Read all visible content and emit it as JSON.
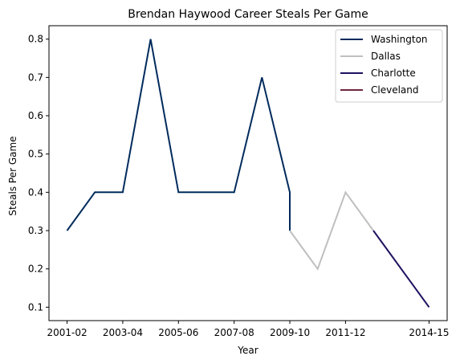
{
  "chart_data": {
    "type": "line",
    "title": "Brendan Haywood Career Steals Per Game",
    "xlabel": "Year",
    "ylabel": "Steals Per Game",
    "x_tick_labels": [
      "2001-02",
      "2003-04",
      "2005-06",
      "2007-08",
      "2009-10",
      "2011-12",
      "2014-15"
    ],
    "y_ticks": [
      0.1,
      0.2,
      0.3,
      0.4,
      0.5,
      0.6,
      0.7,
      0.8
    ],
    "ylim": [
      0.065,
      0.835
    ],
    "grid": false,
    "legend_position": "top-right",
    "series": [
      {
        "name": "Washington",
        "color": "#002B5C",
        "points": [
          {
            "x": "2001-02",
            "y": 0.3
          },
          {
            "x": "2002-03",
            "y": 0.4
          },
          {
            "x": "2003-04",
            "y": 0.4
          },
          {
            "x": "2004-05",
            "y": 0.8
          },
          {
            "x": "2005-06",
            "y": 0.4
          },
          {
            "x": "2006-07",
            "y": 0.4
          },
          {
            "x": "2007-08",
            "y": 0.4
          },
          {
            "x": "2008-09",
            "y": 0.7
          },
          {
            "x": "2009-10",
            "y": 0.4
          },
          {
            "x": "2009-10",
            "y": 0.3
          }
        ]
      },
      {
        "name": "Dallas",
        "color": "#BFBFBF",
        "points": [
          {
            "x": "2009-10",
            "y": 0.3
          },
          {
            "x": "2010-11",
            "y": 0.2
          },
          {
            "x": "2011-12",
            "y": 0.4
          },
          {
            "x": "2012-13",
            "y": 0.3
          }
        ]
      },
      {
        "name": "Charlotte",
        "color": "#1D1160",
        "points": [
          {
            "x": "2012-13",
            "y": 0.3
          },
          {
            "x": "2014-15",
            "y": 0.1
          }
        ]
      },
      {
        "name": "Cleveland",
        "color": "#6F263D",
        "points": []
      }
    ]
  }
}
